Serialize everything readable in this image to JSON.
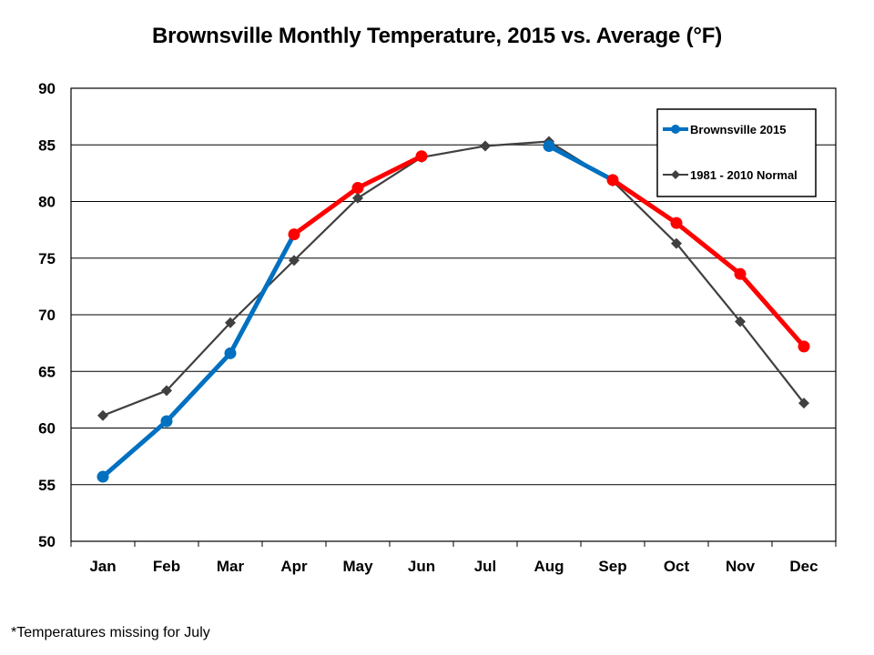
{
  "chart_data": {
    "type": "line",
    "title": "Brownsville Monthly Temperature, 2015 vs. Average (°F)",
    "xlabel": "",
    "ylabel": "",
    "categories": [
      "Jan",
      "Feb",
      "Mar",
      "Apr",
      "May",
      "Jun",
      "Jul",
      "Aug",
      "Sep",
      "Oct",
      "Nov",
      "Dec"
    ],
    "ylim": [
      50,
      90
    ],
    "yticks": [
      50,
      55,
      60,
      65,
      70,
      75,
      80,
      85,
      90
    ],
    "grid": "horizontal",
    "legend_position": "top-right",
    "series": [
      {
        "name": "Brownsville 2015",
        "values": [
          55.7,
          60.6,
          66.6,
          77.1,
          81.2,
          84.0,
          null,
          84.9,
          81.9,
          78.1,
          73.6,
          67.2
        ],
        "color": "#0070C0",
        "marker": "circle",
        "segment_colors_note": "above normal",
        "above_normal_color": "#FF0000"
      },
      {
        "name": "1981 - 2010 Normal",
        "values": [
          61.1,
          63.3,
          69.3,
          74.8,
          80.3,
          83.9,
          84.9,
          85.3,
          81.8,
          76.3,
          69.4,
          62.2
        ],
        "color": "#404040",
        "marker": "diamond"
      }
    ]
  },
  "footnote": "*Temperatures missing for July"
}
